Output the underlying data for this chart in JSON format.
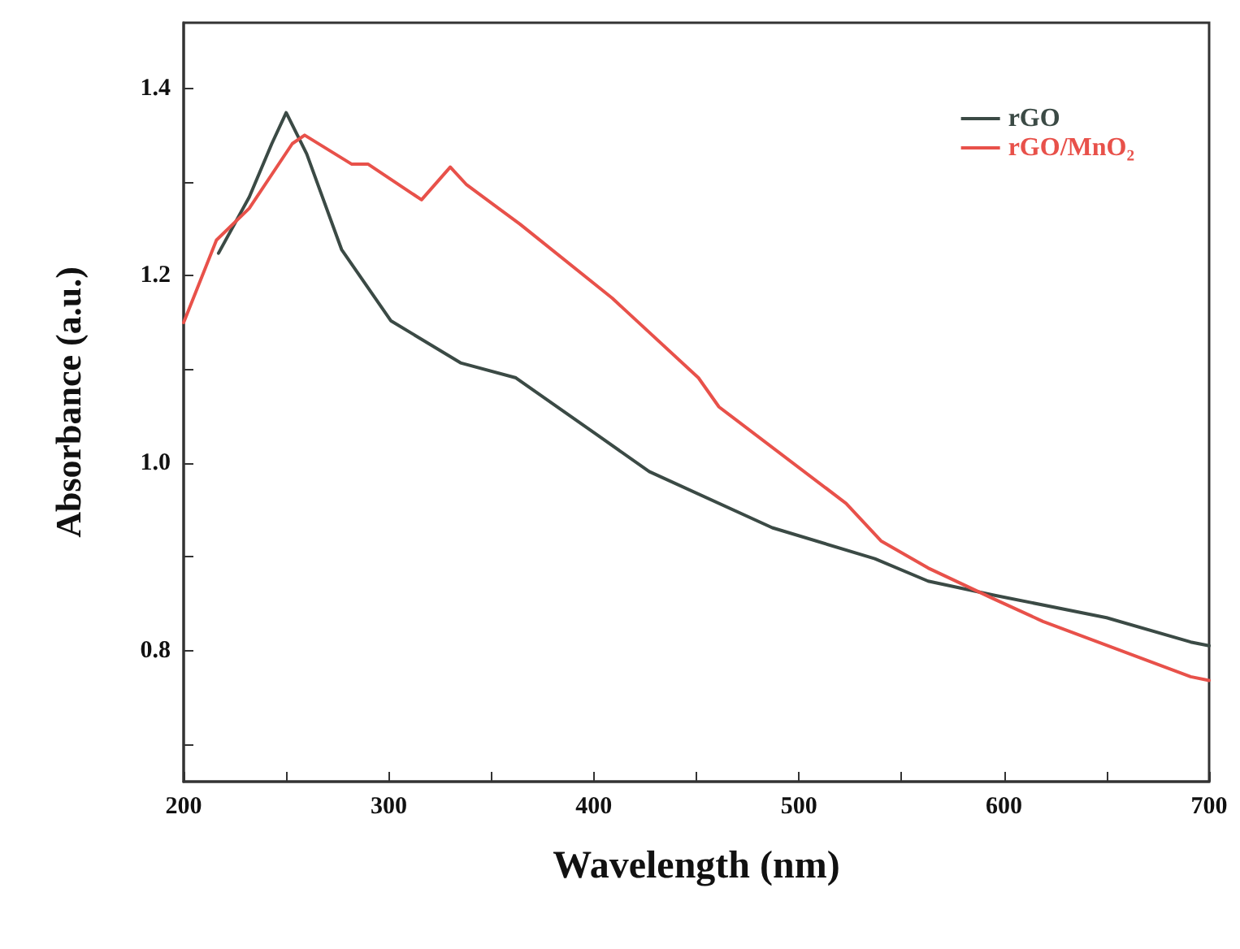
{
  "chart_data": {
    "type": "line",
    "xlabel": "Wavelength (nm)",
    "ylabel": "Absorbance (a.u.)",
    "xlim": [
      200,
      700
    ],
    "xticks": [
      200,
      {
        "value": 250,
        "label": null
      },
      300,
      {
        "value": 350,
        "label": null
      },
      400,
      {
        "value": 450,
        "label": null
      },
      500,
      {
        "value": 550,
        "label": null
      },
      600,
      {
        "value": 650,
        "label": null
      },
      700
    ],
    "ylim": [
      0.66,
      1.47
    ],
    "yticks": [
      {
        "value": 0.7,
        "label": null
      },
      0.8,
      {
        "value": 0.9,
        "label": null
      },
      {
        "value": 1.0,
        "label": "1.0"
      },
      {
        "value": 1.1,
        "label": null
      },
      1.2,
      {
        "value": 1.3,
        "label": null
      },
      1.4
    ],
    "legend": "top right",
    "grid": false,
    "marker": "none",
    "line_style": "solid",
    "series": [
      {
        "name": "rGO",
        "color": "#3b4a45",
        "x": [
          217,
          232,
          243,
          250,
          260,
          277,
          301,
          335,
          362,
          401,
          427,
          487,
          537,
          563,
          595,
          650,
          691,
          700
        ],
        "values": [
          1.224,
          1.284,
          1.341,
          1.374,
          1.33,
          1.228,
          1.152,
          1.107,
          1.091,
          1.031,
          0.991,
          0.931,
          0.898,
          0.874,
          0.859,
          0.835,
          0.809,
          0.805
        ]
      },
      {
        "name": "rGO/MnO₂",
        "color": "#e8514a",
        "x": [
          200,
          216,
          232,
          253,
          259,
          282,
          290,
          316,
          330,
          338,
          364,
          409,
          451,
          461,
          523,
          540,
          563,
          595,
          619,
          691,
          700
        ],
        "values": [
          1.15,
          1.238,
          1.272,
          1.341,
          1.35,
          1.319,
          1.319,
          1.281,
          1.316,
          1.297,
          1.255,
          1.176,
          1.091,
          1.06,
          0.957,
          0.917,
          0.888,
          0.855,
          0.831,
          0.772,
          0.768
        ]
      }
    ]
  }
}
